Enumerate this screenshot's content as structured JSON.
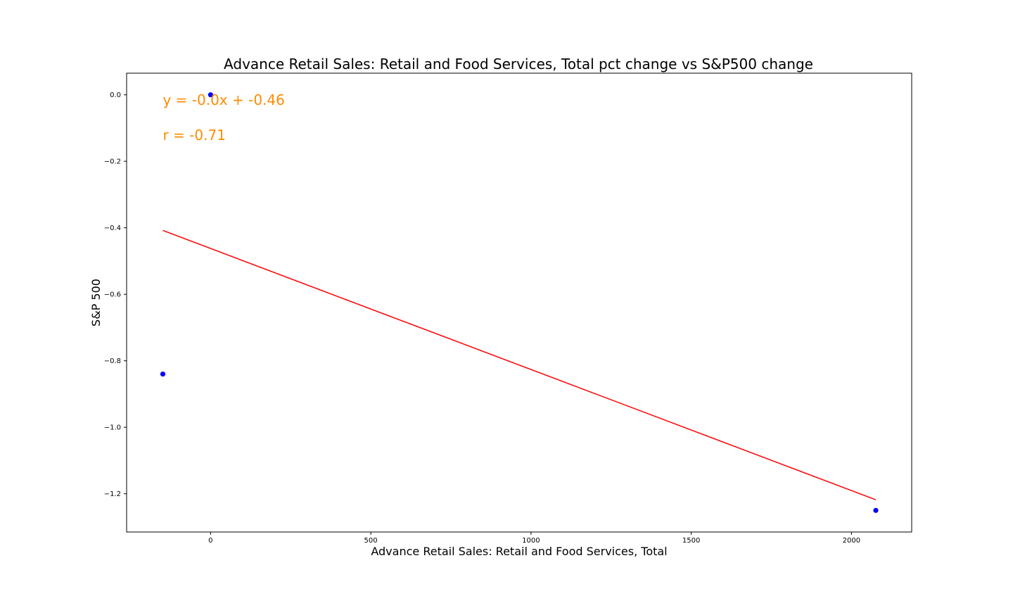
{
  "chart_data": {
    "type": "scatter",
    "title": "Advance Retail Sales: Retail and Food Services, Total pct change vs S&P500 change",
    "xlabel": "Advance Retail Sales: Retail and Food Services, Total",
    "ylabel": "S&P 500",
    "xlim": [
      -262,
      2188
    ],
    "ylim": [
      -1.315,
      0.065
    ],
    "xticks": [
      0,
      500,
      1000,
      1500,
      2000
    ],
    "xtick_labels": [
      "0",
      "500",
      "1000",
      "1500",
      "2000"
    ],
    "yticks": [
      0.0,
      -0.2,
      -0.4,
      -0.6,
      -0.8,
      -1.0,
      -1.2
    ],
    "ytick_labels": [
      "0.0",
      "−0.2",
      "−0.4",
      "−0.6",
      "−0.8",
      "−1.0",
      "−1.2"
    ],
    "grid": false,
    "points": [
      {
        "x": -149,
        "y": -0.84
      },
      {
        "x": 0,
        "y": 0.0
      },
      {
        "x": 2076,
        "y": -1.25
      }
    ],
    "regression_line": {
      "x": [
        -149,
        2076
      ],
      "y": [
        -0.408,
        -1.218
      ]
    },
    "annotations": [
      {
        "text": "y = -0.0x + -0.46",
        "x": -149,
        "y": -0.03
      },
      {
        "text": "r = -0.71",
        "x": -149,
        "y": -0.136
      }
    ],
    "colors": {
      "points": "#0000ff",
      "line": "#ff0000",
      "annotation": "#ff8c00",
      "axes": "#000000"
    }
  }
}
